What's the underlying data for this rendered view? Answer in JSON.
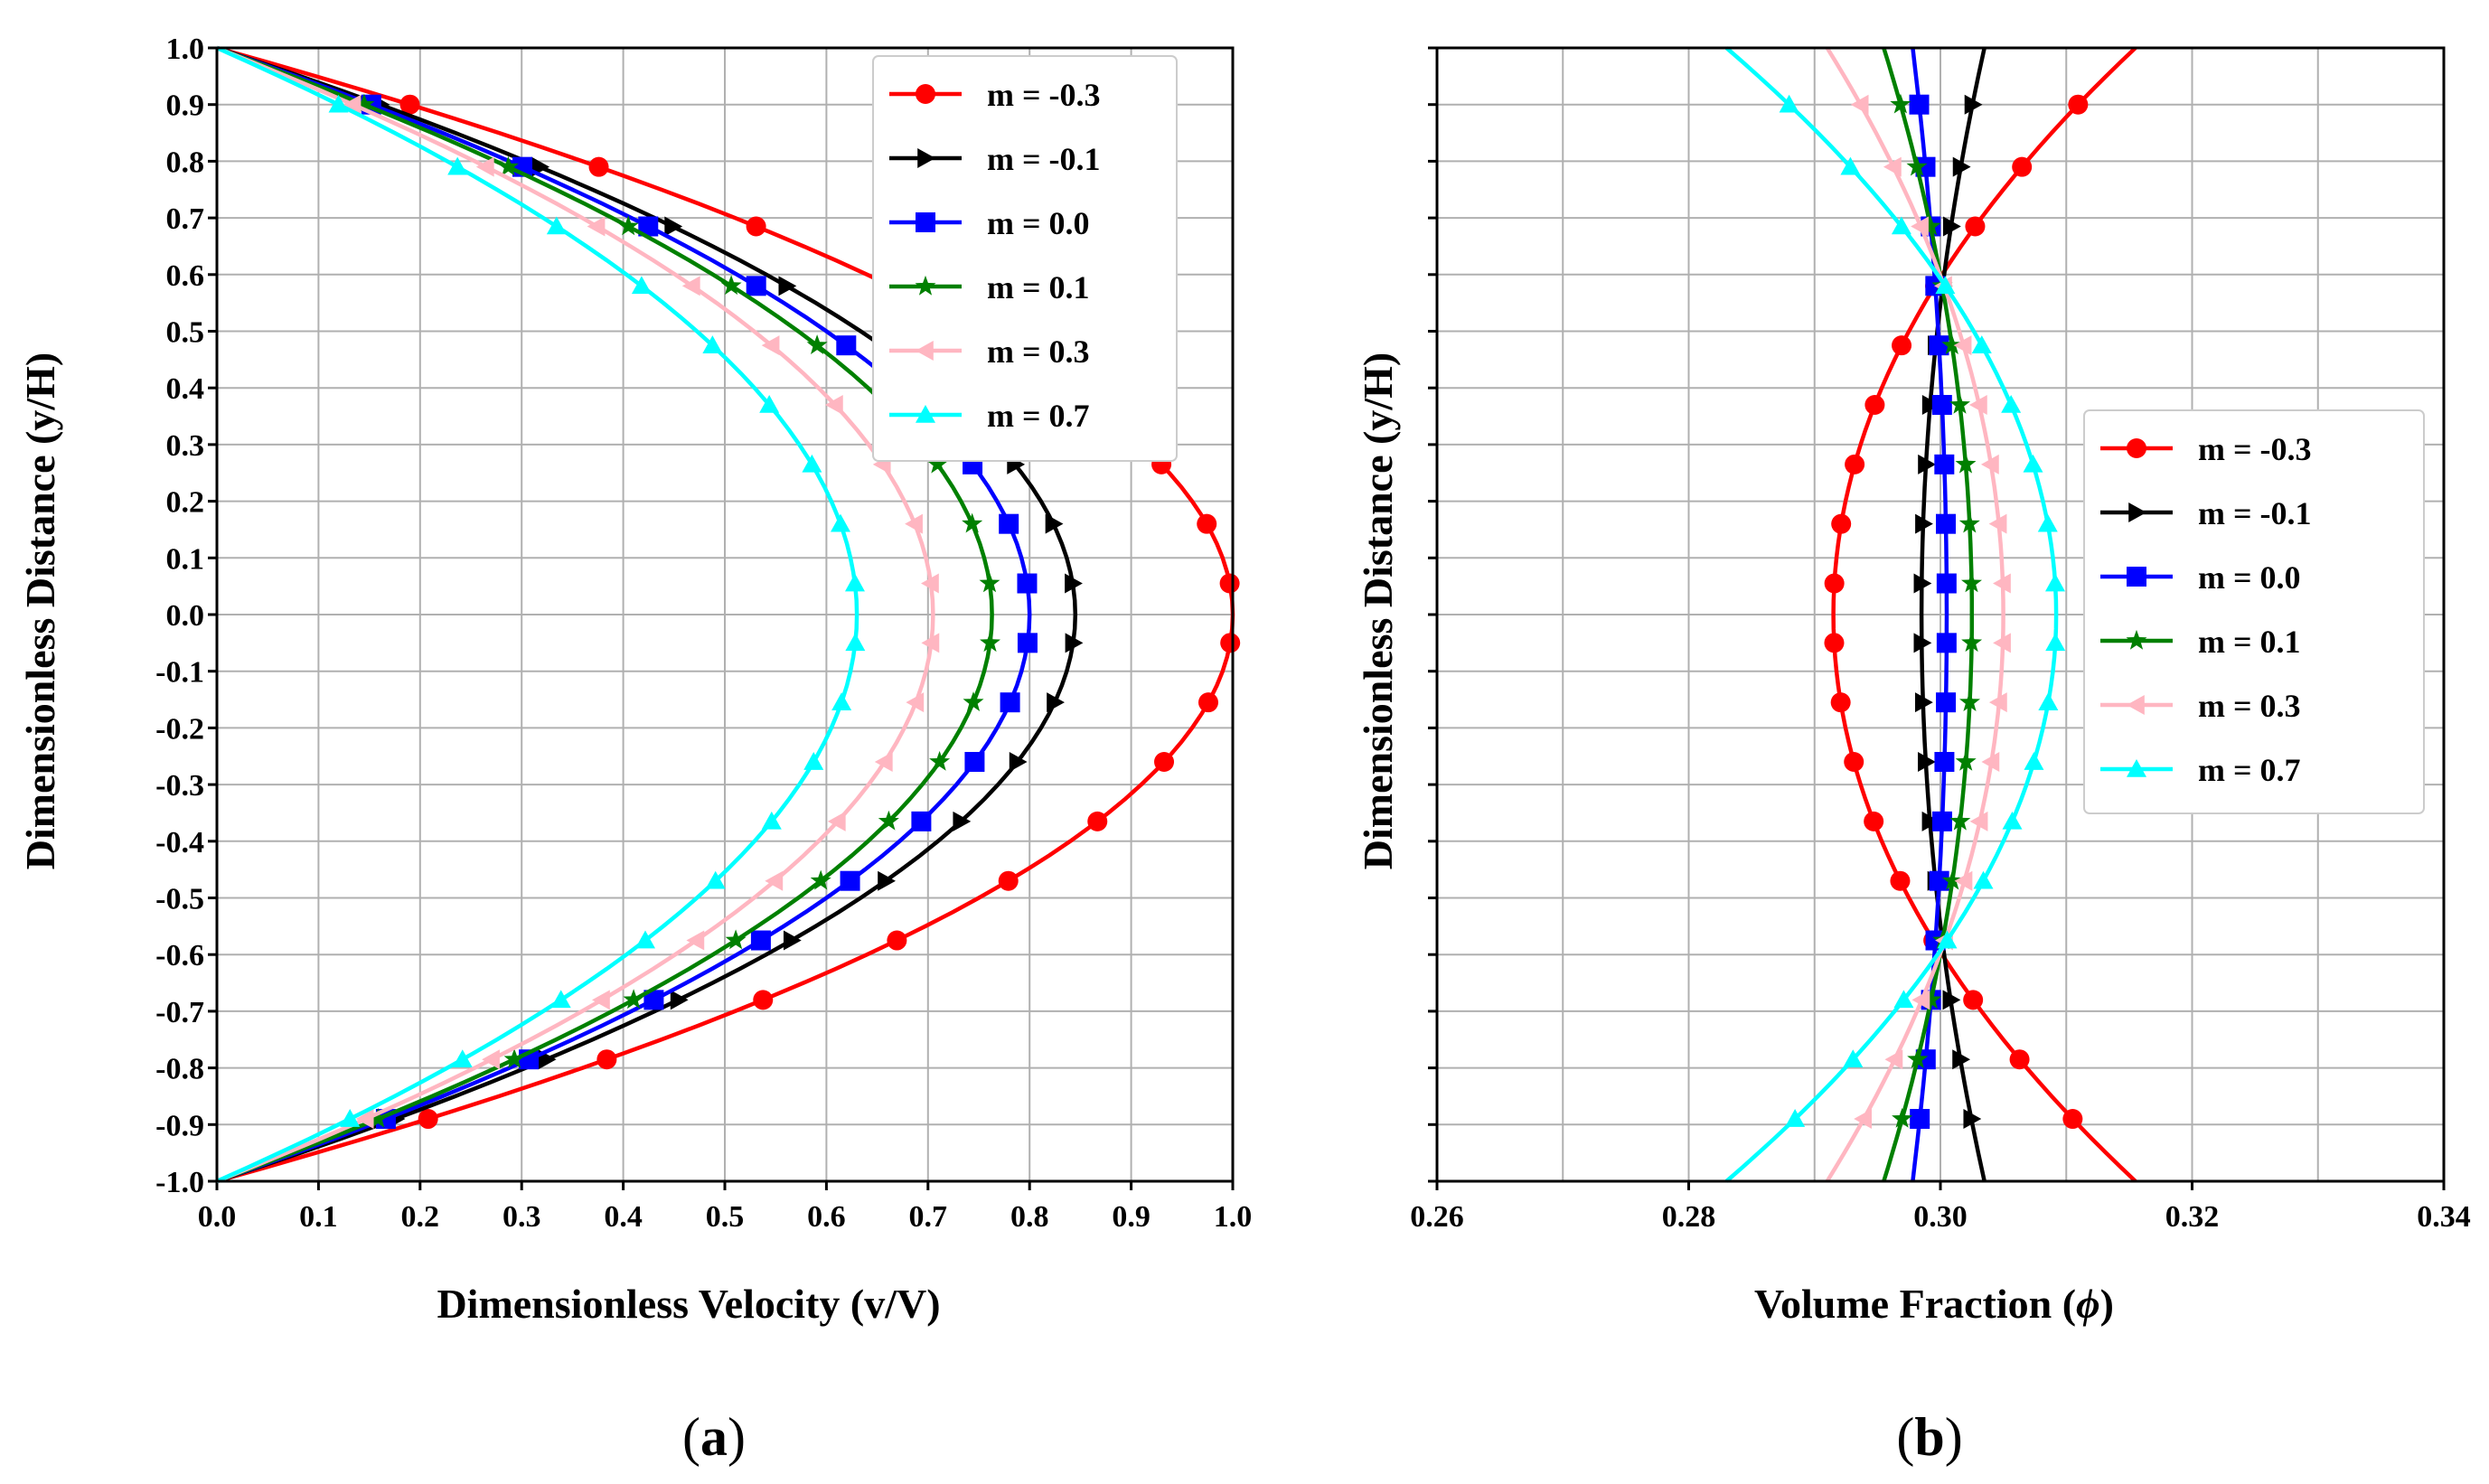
{
  "chart_data": [
    {
      "type": "line",
      "panel": "a",
      "panel_open": "(",
      "panel_close": ")",
      "xlabel": "Dimensionless Velocity (v/V)",
      "ylabel": "Dimensionless Distance (y/H)",
      "xlim": [
        0.0,
        1.0
      ],
      "ylim": [
        -1.0,
        1.0
      ],
      "xticks": [
        "0.0",
        "0.1",
        "0.2",
        "0.3",
        "0.4",
        "0.5",
        "0.6",
        "0.7",
        "0.8",
        "0.9",
        "1.0"
      ],
      "yticks": [
        "1.0",
        "0.9",
        "0.8",
        "0.7",
        "0.6",
        "0.5",
        "0.4",
        "0.3",
        "0.2",
        "0.1",
        "0.0",
        "-0.1",
        "-0.2",
        "-0.3",
        "-0.4",
        "-0.5",
        "-0.6",
        "-0.7",
        "-0.8",
        "-0.9",
        "-1.0"
      ],
      "legend_position": "top-right",
      "marker_y": [
        0.9,
        0.79,
        0.685,
        0.58,
        0.475,
        0.37,
        0.265,
        0.16,
        0.055,
        -0.05,
        -0.155,
        -0.26,
        -0.365,
        -0.47,
        -0.575,
        -0.68,
        -0.785,
        -0.89
      ],
      "series": [
        {
          "name": "m = -0.3",
          "color": "#ff0000",
          "marker": "circle",
          "max": 1.0,
          "shape": "legacy"
        },
        {
          "name": "m = -0.1",
          "color": "#000000",
          "marker": "triangle-right",
          "max": 0.845,
          "shape": "legacy"
        },
        {
          "name": "m =  0.0",
          "color": "#0000ff",
          "marker": "square",
          "max": 0.8,
          "shape": "legacy"
        },
        {
          "name": "m =  0.1",
          "color": "#008000",
          "marker": "star",
          "max": 0.763,
          "shape": "legacy"
        },
        {
          "name": "m =  0.3",
          "color": "#ffb6c1",
          "marker": "triangle-left",
          "max": 0.705,
          "shape": "legacy"
        },
        {
          "name": "m =  0.7",
          "color": "#00ffff",
          "marker": "triangle-up",
          "max": 0.63,
          "shape": "legacy"
        }
      ]
    },
    {
      "type": "line",
      "panel": "b",
      "panel_open": "(",
      "panel_close": ")",
      "xlabel_text": "Volume Fraction (",
      "xlabel_symbol": "ϕ",
      "xlabel_close": ")",
      "ylabel": "Dimensionless Distance (y/H)",
      "xlim": [
        0.26,
        0.34
      ],
      "ylim": [
        -1.0,
        1.0
      ],
      "xticks": [
        "0.26",
        "0.28",
        "0.30",
        "0.32",
        "0.34"
      ],
      "legend_position": "center-right",
      "marker_y": [
        0.9,
        0.79,
        0.685,
        0.58,
        0.475,
        0.37,
        0.265,
        0.16,
        0.055,
        -0.05,
        -0.155,
        -0.26,
        -0.365,
        -0.47,
        -0.575,
        -0.68,
        -0.785,
        -0.89
      ],
      "series": [
        {
          "name": "m = -0.3",
          "color": "#ff0000",
          "marker": "circle",
          "center": 0.2915,
          "edge": 0.3155
        },
        {
          "name": "m = -0.1",
          "color": "#000000",
          "marker": "triangle-right",
          "center": 0.2985,
          "edge": 0.3035
        },
        {
          "name": "m =  0.0",
          "color": "#0000ff",
          "marker": "square",
          "center": 0.3005,
          "edge": 0.2978
        },
        {
          "name": "m =  0.1",
          "color": "#008000",
          "marker": "star",
          "center": 0.3025,
          "edge": 0.2955
        },
        {
          "name": "m =  0.3",
          "color": "#ffb6c1",
          "marker": "triangle-left",
          "center": 0.305,
          "edge": 0.291
        },
        {
          "name": "m =  0.7",
          "color": "#00ffff",
          "marker": "triangle-up",
          "center": 0.3092,
          "edge": 0.283
        }
      ]
    }
  ]
}
